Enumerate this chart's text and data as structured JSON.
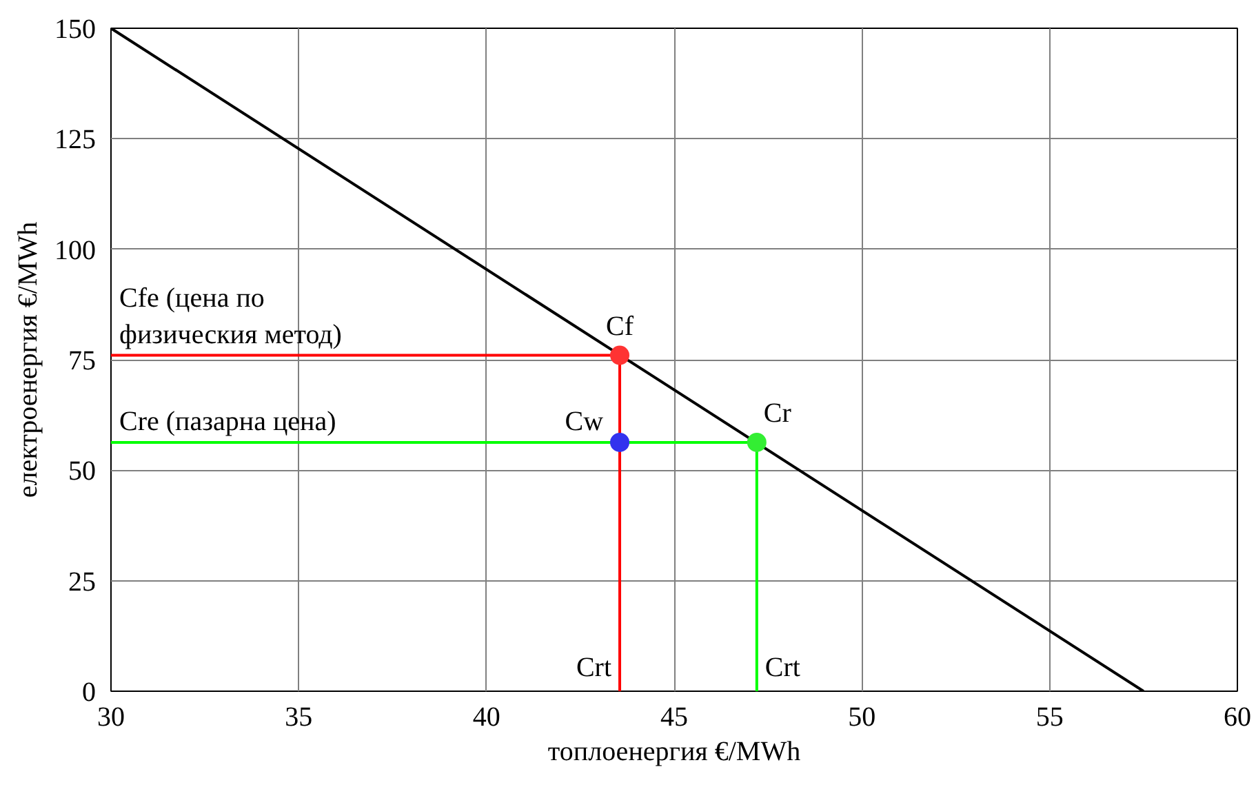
{
  "chart_data": {
    "type": "line",
    "xlabel": "топлоенергия €/MWh",
    "ylabel": "електроенергия €/MWh",
    "xlim": [
      30,
      60
    ],
    "ylim": [
      0,
      150
    ],
    "xticks": [
      30,
      35,
      40,
      45,
      50,
      55,
      60
    ],
    "yticks": [
      0,
      25,
      50,
      75,
      100,
      125,
      150
    ],
    "grid": true,
    "series": [
      {
        "color": "#000000",
        "x": [
          30,
          57.5
        ],
        "values": [
          150,
          0
        ]
      },
      {
        "color": "#ff0000",
        "x": [
          30,
          43.55,
          43.55
        ],
        "values": [
          76,
          76,
          0
        ]
      },
      {
        "color": "#00ff00",
        "x": [
          30,
          47.2,
          47.2
        ],
        "values": [
          56.3,
          56.3,
          0
        ]
      },
      {
        "type": "scatter",
        "marker": "circle",
        "colors": [
          "#ff3333",
          "#33ee33",
          "#3333ee"
        ],
        "x": [
          43.55,
          47.2,
          43.55
        ],
        "values": [
          76,
          56.3,
          56.3
        ]
      }
    ],
    "annotations": [
      {
        "text": "Cf",
        "x": 43.55,
        "y": 76
      },
      {
        "text": "Cr",
        "x": 47.2,
        "y": 56.3
      },
      {
        "text": "Cw",
        "x": 43.55,
        "y": 56.3
      },
      {
        "text": "Crt",
        "x": 43.55,
        "y": 0
      },
      {
        "text": "Crt",
        "x": 47.2,
        "y": 0
      },
      {
        "text": "Cfe (цена по\nфизическия метод)",
        "x": 30,
        "y": 76
      },
      {
        "text": "Cre (пазарна цена)",
        "x": 30,
        "y": 56.3
      }
    ]
  }
}
